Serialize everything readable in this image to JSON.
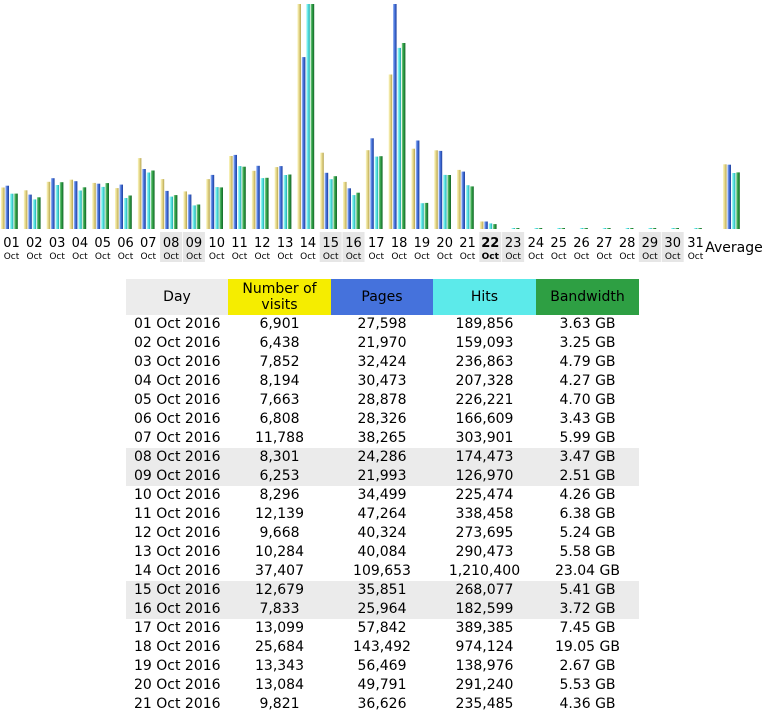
{
  "chart_data": {
    "type": "bar",
    "colors": {
      "visits": "#F5ED00",
      "pages": "#4572DC",
      "hits": "#5CEAEA",
      "bandwidth": "#2E9F43"
    },
    "categories": [
      {
        "day": "01",
        "month": "Oct",
        "weekend": false,
        "bold": false
      },
      {
        "day": "02",
        "month": "Oct",
        "weekend": false,
        "bold": false
      },
      {
        "day": "03",
        "month": "Oct",
        "weekend": false,
        "bold": false
      },
      {
        "day": "04",
        "month": "Oct",
        "weekend": false,
        "bold": false
      },
      {
        "day": "05",
        "month": "Oct",
        "weekend": false,
        "bold": false
      },
      {
        "day": "06",
        "month": "Oct",
        "weekend": false,
        "bold": false
      },
      {
        "day": "07",
        "month": "Oct",
        "weekend": false,
        "bold": false
      },
      {
        "day": "08",
        "month": "Oct",
        "weekend": true,
        "bold": false
      },
      {
        "day": "09",
        "month": "Oct",
        "weekend": true,
        "bold": false
      },
      {
        "day": "10",
        "month": "Oct",
        "weekend": false,
        "bold": false
      },
      {
        "day": "11",
        "month": "Oct",
        "weekend": false,
        "bold": false
      },
      {
        "day": "12",
        "month": "Oct",
        "weekend": false,
        "bold": false
      },
      {
        "day": "13",
        "month": "Oct",
        "weekend": false,
        "bold": false
      },
      {
        "day": "14",
        "month": "Oct",
        "weekend": false,
        "bold": false
      },
      {
        "day": "15",
        "month": "Oct",
        "weekend": true,
        "bold": false
      },
      {
        "day": "16",
        "month": "Oct",
        "weekend": true,
        "bold": false
      },
      {
        "day": "17",
        "month": "Oct",
        "weekend": false,
        "bold": false
      },
      {
        "day": "18",
        "month": "Oct",
        "weekend": false,
        "bold": false
      },
      {
        "day": "19",
        "month": "Oct",
        "weekend": false,
        "bold": false
      },
      {
        "day": "20",
        "month": "Oct",
        "weekend": false,
        "bold": false
      },
      {
        "day": "21",
        "month": "Oct",
        "weekend": false,
        "bold": false
      },
      {
        "day": "22",
        "month": "Oct",
        "weekend": true,
        "bold": true
      },
      {
        "day": "23",
        "month": "Oct",
        "weekend": true,
        "bold": false
      },
      {
        "day": "24",
        "month": "Oct",
        "weekend": false,
        "bold": false
      },
      {
        "day": "25",
        "month": "Oct",
        "weekend": false,
        "bold": false
      },
      {
        "day": "26",
        "month": "Oct",
        "weekend": false,
        "bold": false
      },
      {
        "day": "27",
        "month": "Oct",
        "weekend": false,
        "bold": false
      },
      {
        "day": "28",
        "month": "Oct",
        "weekend": false,
        "bold": false
      },
      {
        "day": "29",
        "month": "Oct",
        "weekend": true,
        "bold": false
      },
      {
        "day": "30",
        "month": "Oct",
        "weekend": true,
        "bold": false
      },
      {
        "day": "31",
        "month": "Oct",
        "weekend": false,
        "bold": false
      }
    ],
    "average_label": "Average",
    "series": [
      {
        "key": "visits",
        "values": [
          6901,
          6438,
          7852,
          8194,
          7663,
          6808,
          11788,
          8301,
          6253,
          8296,
          12139,
          9668,
          10284,
          37407,
          12679,
          7833,
          13099,
          25684,
          13343,
          13084,
          9821,
          1250,
          0,
          0,
          0,
          0,
          0,
          0,
          0,
          0,
          0
        ],
        "average": 10750
      },
      {
        "key": "pages",
        "values": [
          27598,
          21970,
          32424,
          30473,
          28878,
          28326,
          38265,
          24286,
          21993,
          34499,
          47264,
          40324,
          40084,
          109653,
          35851,
          25964,
          57842,
          143492,
          56469,
          49791,
          36626,
          4800,
          0,
          0,
          0,
          0,
          0,
          0,
          0,
          0,
          0
        ],
        "average": 41000
      },
      {
        "key": "hits",
        "values": [
          189856,
          159093,
          236863,
          207328,
          226221,
          166609,
          303901,
          174473,
          126970,
          225474,
          338458,
          273695,
          290473,
          1210400,
          268077,
          182599,
          389385,
          974124,
          138976,
          291240,
          235485,
          30000,
          4500,
          4500,
          4500,
          4500,
          4500,
          4500,
          4500,
          4500,
          4500
        ],
        "average": 301000
      },
      {
        "key": "bandwidth",
        "values": [
          3.63,
          3.25,
          4.79,
          4.27,
          4.7,
          3.43,
          5.99,
          3.47,
          2.51,
          4.26,
          6.38,
          5.24,
          5.58,
          23.04,
          5.41,
          3.72,
          7.45,
          19.05,
          2.67,
          5.53,
          4.36,
          0.5,
          0.08,
          0.08,
          0.08,
          0.08,
          0.08,
          0.08,
          0.08,
          0.08,
          0.08
        ],
        "average": 5.8
      }
    ]
  },
  "table": {
    "headers": {
      "day": "Day",
      "visits": "Number of visits",
      "pages": "Pages",
      "hits": "Hits",
      "bandwidth": "Bandwidth"
    },
    "rows": [
      {
        "day": "01 Oct 2016",
        "visits": "6,901",
        "pages": "27,598",
        "hits": "189,856",
        "bandwidth": "3.63 GB",
        "weekend": false
      },
      {
        "day": "02 Oct 2016",
        "visits": "6,438",
        "pages": "21,970",
        "hits": "159,093",
        "bandwidth": "3.25 GB",
        "weekend": false
      },
      {
        "day": "03 Oct 2016",
        "visits": "7,852",
        "pages": "32,424",
        "hits": "236,863",
        "bandwidth": "4.79 GB",
        "weekend": false
      },
      {
        "day": "04 Oct 2016",
        "visits": "8,194",
        "pages": "30,473",
        "hits": "207,328",
        "bandwidth": "4.27 GB",
        "weekend": false
      },
      {
        "day": "05 Oct 2016",
        "visits": "7,663",
        "pages": "28,878",
        "hits": "226,221",
        "bandwidth": "4.70 GB",
        "weekend": false
      },
      {
        "day": "06 Oct 2016",
        "visits": "6,808",
        "pages": "28,326",
        "hits": "166,609",
        "bandwidth": "3.43 GB",
        "weekend": false
      },
      {
        "day": "07 Oct 2016",
        "visits": "11,788",
        "pages": "38,265",
        "hits": "303,901",
        "bandwidth": "5.99 GB",
        "weekend": false
      },
      {
        "day": "08 Oct 2016",
        "visits": "8,301",
        "pages": "24,286",
        "hits": "174,473",
        "bandwidth": "3.47 GB",
        "weekend": true
      },
      {
        "day": "09 Oct 2016",
        "visits": "6,253",
        "pages": "21,993",
        "hits": "126,970",
        "bandwidth": "2.51 GB",
        "weekend": true
      },
      {
        "day": "10 Oct 2016",
        "visits": "8,296",
        "pages": "34,499",
        "hits": "225,474",
        "bandwidth": "4.26 GB",
        "weekend": false
      },
      {
        "day": "11 Oct 2016",
        "visits": "12,139",
        "pages": "47,264",
        "hits": "338,458",
        "bandwidth": "6.38 GB",
        "weekend": false
      },
      {
        "day": "12 Oct 2016",
        "visits": "9,668",
        "pages": "40,324",
        "hits": "273,695",
        "bandwidth": "5.24 GB",
        "weekend": false
      },
      {
        "day": "13 Oct 2016",
        "visits": "10,284",
        "pages": "40,084",
        "hits": "290,473",
        "bandwidth": "5.58 GB",
        "weekend": false
      },
      {
        "day": "14 Oct 2016",
        "visits": "37,407",
        "pages": "109,653",
        "hits": "1,210,400",
        "bandwidth": "23.04 GB",
        "weekend": false
      },
      {
        "day": "15 Oct 2016",
        "visits": "12,679",
        "pages": "35,851",
        "hits": "268,077",
        "bandwidth": "5.41 GB",
        "weekend": true
      },
      {
        "day": "16 Oct 2016",
        "visits": "7,833",
        "pages": "25,964",
        "hits": "182,599",
        "bandwidth": "3.72 GB",
        "weekend": true
      },
      {
        "day": "17 Oct 2016",
        "visits": "13,099",
        "pages": "57,842",
        "hits": "389,385",
        "bandwidth": "7.45 GB",
        "weekend": false
      },
      {
        "day": "18 Oct 2016",
        "visits": "25,684",
        "pages": "143,492",
        "hits": "974,124",
        "bandwidth": "19.05 GB",
        "weekend": false
      },
      {
        "day": "19 Oct 2016",
        "visits": "13,343",
        "pages": "56,469",
        "hits": "138,976",
        "bandwidth": "2.67 GB",
        "weekend": false
      },
      {
        "day": "20 Oct 2016",
        "visits": "13,084",
        "pages": "49,791",
        "hits": "291,240",
        "bandwidth": "5.53 GB",
        "weekend": false
      },
      {
        "day": "21 Oct 2016",
        "visits": "9,821",
        "pages": "36,626",
        "hits": "235,485",
        "bandwidth": "4.36 GB",
        "weekend": false
      }
    ]
  }
}
